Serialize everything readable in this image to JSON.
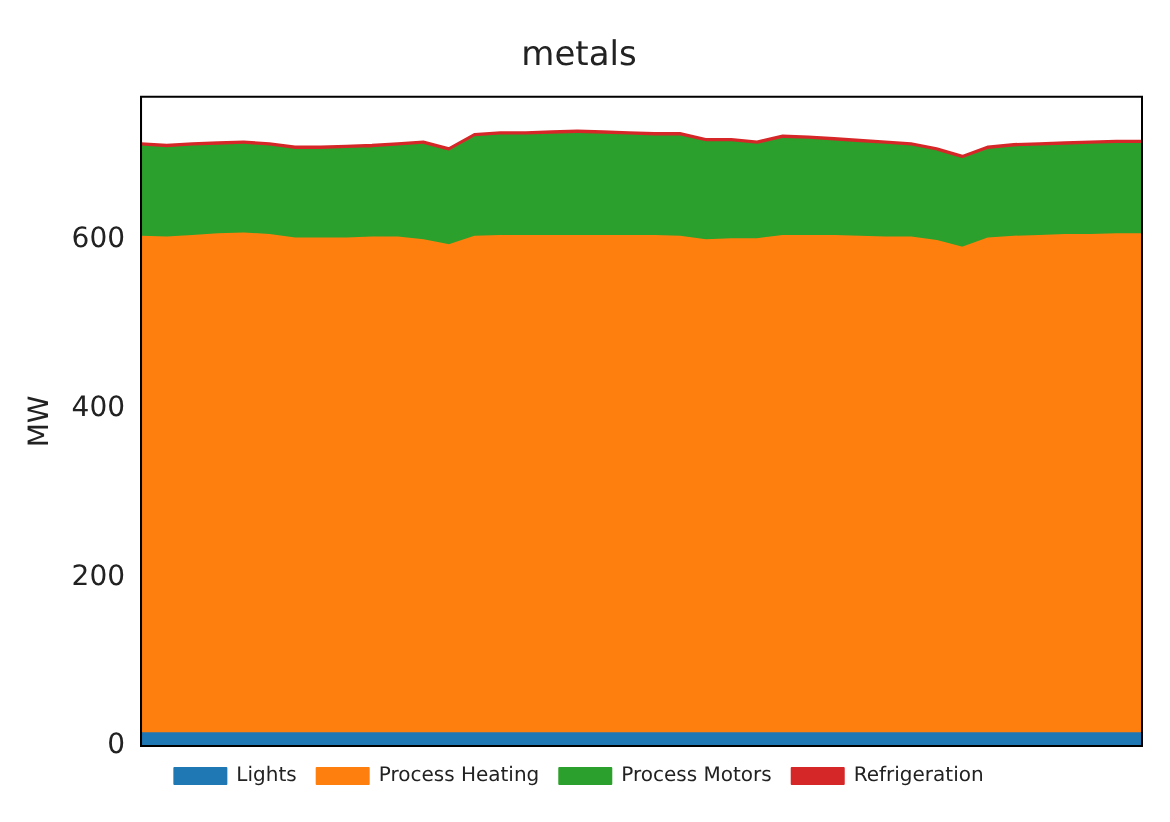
{
  "chart_data": {
    "type": "area",
    "title": "metals",
    "ylabel": "MW",
    "stacked": true,
    "legend": "bottom",
    "grid": false,
    "ylim": [
      0,
      770
    ],
    "yticks": [
      0,
      200,
      400,
      600
    ],
    "categories": [
      null,
      null,
      null,
      null,
      null,
      null,
      null,
      null,
      null,
      null,
      null,
      null,
      null,
      null,
      null,
      null,
      null,
      null,
      null,
      null,
      null,
      null,
      null,
      null,
      null,
      null,
      null,
      null,
      null,
      null,
      null,
      null,
      null,
      null,
      null,
      null,
      null,
      null,
      null,
      null
    ],
    "series": [
      {
        "name": "Lights",
        "color": "#1f77b4",
        "values": [
          15,
          15,
          15,
          15,
          15,
          15,
          15,
          15,
          15,
          15,
          15,
          15,
          15,
          15,
          15,
          15,
          15,
          15,
          15,
          15,
          15,
          15,
          15,
          15,
          15,
          15,
          15,
          15,
          15,
          15,
          15,
          15,
          15,
          15,
          15,
          15,
          15,
          15,
          15,
          15
        ]
      },
      {
        "name": "Process Heating",
        "color": "#ff7f0e",
        "values": [
          589,
          588,
          590,
          592,
          593,
          591,
          587,
          587,
          587,
          588,
          588,
          585,
          579,
          589,
          590,
          590,
          590,
          590,
          590,
          590,
          590,
          589,
          585,
          586,
          586,
          590,
          590,
          590,
          589,
          588,
          588,
          584,
          576,
          587,
          589,
          590,
          591,
          591,
          592,
          592
        ]
      },
      {
        "name": "Process Motors",
        "color": "#2ca02c",
        "values": [
          107,
          106,
          106,
          105,
          105,
          105,
          105,
          105,
          106,
          106,
          108,
          113,
          111,
          118,
          119,
          119,
          120,
          121,
          120,
          119,
          118,
          119,
          116,
          115,
          112,
          115,
          114,
          112,
          111,
          110,
          108,
          106,
          105,
          105,
          106,
          106,
          106,
          107,
          107,
          107
        ]
      },
      {
        "name": "Refrigeration",
        "color": "#d62728",
        "values": [
          4,
          4,
          4,
          4,
          4,
          4,
          4,
          4,
          4,
          4,
          4,
          4,
          4,
          4,
          4,
          4,
          4,
          4,
          4,
          4,
          4,
          4,
          4,
          4,
          4,
          4,
          4,
          4,
          4,
          4,
          4,
          4,
          4,
          4,
          4,
          4,
          4,
          4,
          4,
          4
        ]
      }
    ]
  }
}
